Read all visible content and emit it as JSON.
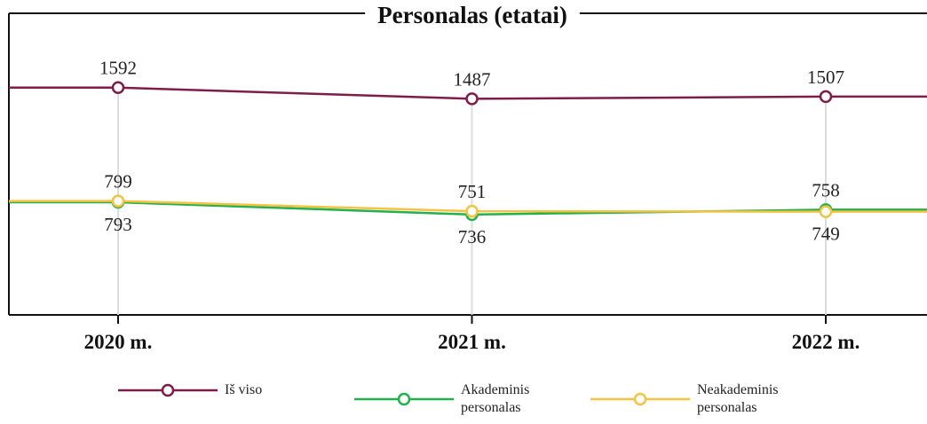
{
  "chart_data": {
    "type": "line",
    "title": "Personalas (etatai)",
    "categories": [
      "2020 m.",
      "2021 m.",
      "2022 m."
    ],
    "series": [
      {
        "name": "Iš viso",
        "color": "#7f1d4a",
        "values": [
          1592,
          1487,
          1507
        ]
      },
      {
        "name": "Akademinis personalas",
        "color": "#22b14c",
        "values": [
          793,
          736,
          758
        ]
      },
      {
        "name": "Neakademinis personalas",
        "color": "#f5c242",
        "values": [
          799,
          751,
          749
        ]
      }
    ],
    "ylim": [
      400,
      2500
    ],
    "log_scale": true,
    "grid": true,
    "legend": "bottom"
  }
}
